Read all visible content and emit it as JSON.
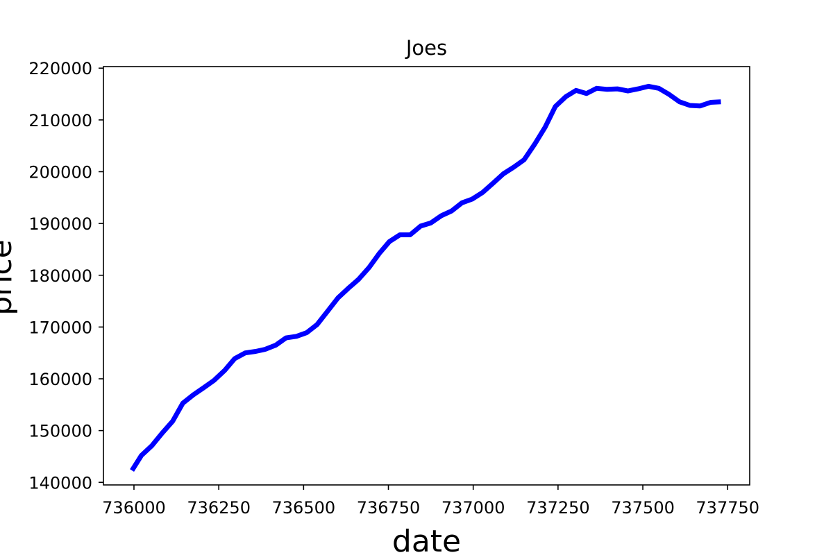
{
  "chart_data": {
    "type": "line",
    "title": "Joes",
    "xlabel": "date",
    "ylabel": "price",
    "xlim": [
      735910,
      737815
    ],
    "ylim": [
      139500,
      220300
    ],
    "x_ticks": [
      736000,
      736250,
      736500,
      736750,
      737000,
      737250,
      737500,
      737750
    ],
    "y_ticks": [
      140000,
      150000,
      160000,
      170000,
      180000,
      190000,
      200000,
      210000,
      220000
    ],
    "grid": false,
    "legend": "none",
    "series": [
      {
        "color": "#0000ff",
        "x": [
          735994,
          736022,
          736053,
          736083,
          736114,
          736144,
          736175,
          736206,
          736236,
          736267,
          736297,
          736328,
          736359,
          736387,
          736418,
          736448,
          736479,
          736509,
          736540,
          736570,
          736601,
          736632,
          736662,
          736693,
          736723,
          736753,
          736784,
          736814,
          736845,
          736875,
          736906,
          736936,
          736967,
          736997,
          737028,
          737059,
          737089,
          737120,
          737150,
          737181,
          737212,
          737242,
          737273,
          737303,
          737334,
          737364,
          737395,
          737425,
          737456,
          737486,
          737517,
          737547,
          737578,
          737608,
          737639,
          737669,
          737700,
          737730
        ],
        "y": [
          142300,
          145200,
          147100,
          149500,
          151800,
          155300,
          156900,
          158300,
          159700,
          161600,
          163900,
          165000,
          165300,
          165700,
          166500,
          167900,
          168200,
          168900,
          170500,
          173000,
          175600,
          177500,
          179200,
          181500,
          184200,
          186500,
          187800,
          187800,
          189500,
          190100,
          191500,
          192400,
          194000,
          194700,
          196000,
          197800,
          199600,
          200900,
          202300,
          205300,
          208600,
          212600,
          214500,
          215700,
          215100,
          216100,
          215900,
          216000,
          215600,
          216000,
          216500,
          216100,
          214900,
          213500,
          212800,
          212700,
          213400,
          213500
        ]
      }
    ]
  }
}
